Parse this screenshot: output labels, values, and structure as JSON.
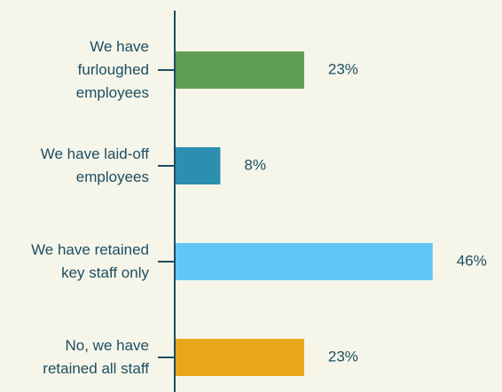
{
  "chart_data": {
    "type": "bar",
    "orientation": "horizontal",
    "categories": [
      "We have furloughed employees",
      "We have laid-off employees",
      "We have retained key staff only",
      "No, we have retained all staff"
    ],
    "values": [
      23,
      8,
      46,
      23
    ],
    "value_labels": [
      "23%",
      "8%",
      "46%",
      "23%"
    ],
    "colors": [
      "#5f9e54",
      "#2b8fb0",
      "#62c6f7",
      "#e9a71a"
    ]
  }
}
